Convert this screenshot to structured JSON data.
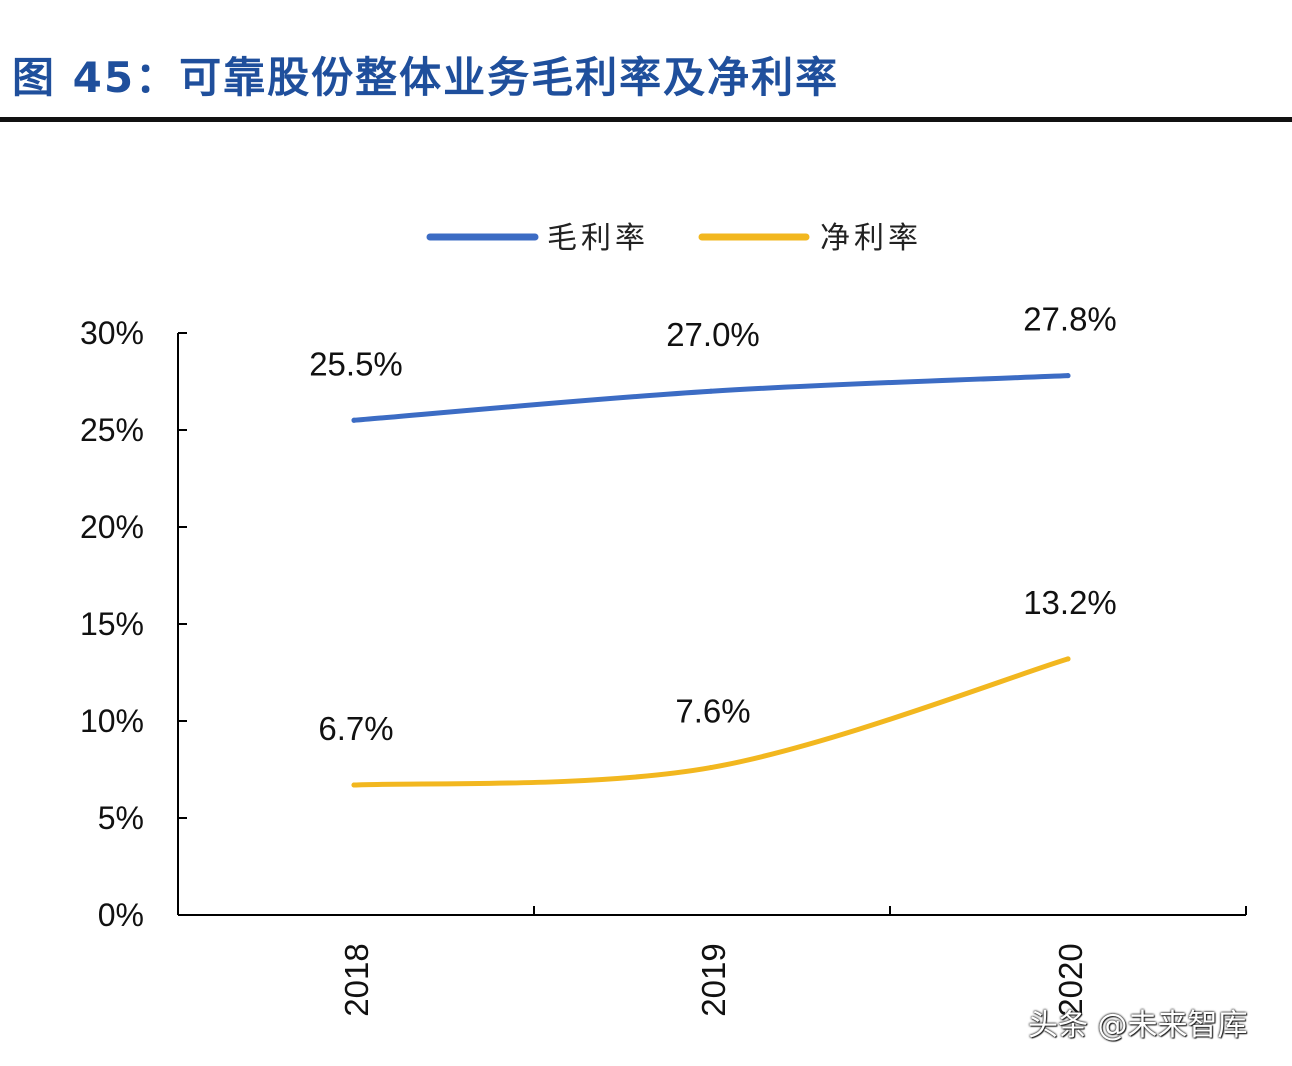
{
  "title": "图 45：可靠股份整体业务毛利率及净利率",
  "watermark": "头条 @未来智库",
  "colors": {
    "title": "#1f4f9c",
    "series": [
      "#3c6cc4",
      "#f2b71f"
    ],
    "axis": "#000000"
  },
  "chart_data": {
    "type": "line",
    "categories": [
      "2018",
      "2019",
      "2020"
    ],
    "series": [
      {
        "name": "毛利率",
        "values": [
          25.5,
          27.0,
          27.8
        ],
        "labels": [
          "25.5%",
          "27.0%",
          "27.8%"
        ]
      },
      {
        "name": "净利率",
        "values": [
          6.7,
          7.6,
          13.2
        ],
        "labels": [
          "6.7%",
          "7.6%",
          "13.2%"
        ]
      }
    ],
    "ylim": [
      0,
      30
    ],
    "yticks": [
      0,
      5,
      10,
      15,
      20,
      25,
      30
    ],
    "ytick_labels": [
      "0%",
      "5%",
      "10%",
      "15%",
      "20%",
      "25%",
      "30%"
    ],
    "smooth": true,
    "grid": false,
    "legend": "top-center",
    "x_tick_rotation": "vertical"
  }
}
